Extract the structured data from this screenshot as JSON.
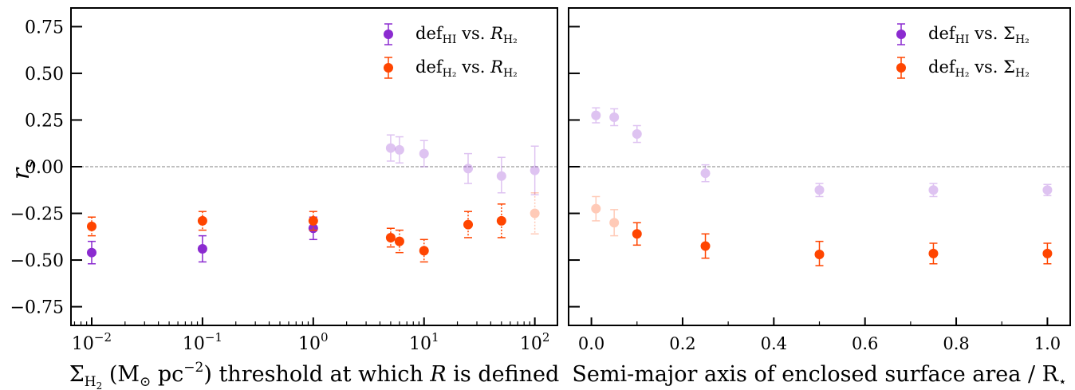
{
  "figure": {
    "ylabel": "r",
    "ylabel_sub": "s"
  },
  "chart_data": [
    {
      "type": "scatter",
      "xscale": "log",
      "xlim": [
        0.0065,
        160
      ],
      "ylim": [
        -0.85,
        0.85
      ],
      "xticks": [
        {
          "value": 0.01,
          "base": "10",
          "exp": "−2"
        },
        {
          "value": 0.1,
          "base": "10",
          "exp": "−1"
        },
        {
          "value": 1,
          "base": "10",
          "exp": "0"
        },
        {
          "value": 10,
          "base": "10",
          "exp": "1"
        },
        {
          "value": 100,
          "base": "10",
          "exp": "2"
        }
      ],
      "yticks": [
        "0.75",
        "0.50",
        "0.25",
        "0.00",
        "−0.25",
        "−0.50",
        "−0.75"
      ],
      "ytick_values": [
        0.75,
        0.5,
        0.25,
        0.0,
        -0.25,
        -0.5,
        -0.75
      ],
      "xlabel": "Σ_H₂ (M_⊙ pc^−2) threshold at which R is defined",
      "xlabel_parts": {
        "sigma": "Σ",
        "h2": "H",
        "h2sub": "2",
        "units_open": " (M",
        "sun": "⊙",
        "units_mid": " pc",
        "exp": "−2",
        "units_close": ") threshold at which ",
        "R": "R",
        "tail": " is defined"
      },
      "reference_line": 0,
      "legend": {
        "location": "top-right",
        "entries": [
          {
            "series": 0,
            "main": "def",
            "sub": "HI",
            "vs": " vs. ",
            "var": "R",
            "varsub": "H₂"
          },
          {
            "series": 1,
            "main": "def",
            "sub": "H₂",
            "vs": " vs. ",
            "var": "R",
            "varsub": "H₂"
          }
        ]
      },
      "series": [
        {
          "color": "#8B2BD0",
          "points": [
            {
              "x": 0.01,
              "y": -0.46,
              "lo": -0.52,
              "hi": -0.4,
              "faded": false
            },
            {
              "x": 0.1,
              "y": -0.44,
              "lo": -0.51,
              "hi": -0.37,
              "faded": false
            },
            {
              "x": 1,
              "y": -0.33,
              "lo": -0.39,
              "hi": -0.27,
              "faded": false
            },
            {
              "x": 5,
              "y": 0.1,
              "lo": 0.03,
              "hi": 0.17,
              "faded": true
            },
            {
              "x": 6,
              "y": 0.09,
              "lo": 0.02,
              "hi": 0.16,
              "faded": true
            },
            {
              "x": 10,
              "y": 0.07,
              "lo": 0.0,
              "hi": 0.14,
              "faded": true
            },
            {
              "x": 25,
              "y": -0.01,
              "lo": -0.09,
              "hi": 0.07,
              "faded": true
            },
            {
              "x": 50,
              "y": -0.05,
              "lo": -0.14,
              "hi": 0.05,
              "faded": true
            },
            {
              "x": 100,
              "y": -0.02,
              "lo": -0.15,
              "hi": 0.11,
              "faded": true
            }
          ]
        },
        {
          "color": "#FF4500",
          "points": [
            {
              "x": 0.01,
              "y": -0.32,
              "lo": -0.37,
              "hi": -0.27,
              "faded": false
            },
            {
              "x": 0.1,
              "y": -0.29,
              "lo": -0.34,
              "hi": -0.24,
              "faded": false
            },
            {
              "x": 1,
              "y": -0.29,
              "lo": -0.34,
              "hi": -0.24,
              "faded": false
            },
            {
              "x": 5,
              "y": -0.38,
              "lo": -0.43,
              "hi": -0.33,
              "faded": false
            },
            {
              "x": 6,
              "y": -0.4,
              "lo": -0.46,
              "hi": -0.34,
              "faded": false
            },
            {
              "x": 10,
              "y": -0.45,
              "lo": -0.51,
              "hi": -0.39,
              "faded": false
            },
            {
              "x": 25,
              "y": -0.31,
              "lo": -0.38,
              "hi": -0.24,
              "faded": false
            },
            {
              "x": 50,
              "y": -0.29,
              "lo": -0.38,
              "hi": -0.2,
              "faded": false
            },
            {
              "x": 100,
              "y": -0.25,
              "lo": -0.36,
              "hi": -0.14,
              "faded": true
            }
          ]
        }
      ]
    },
    {
      "type": "scatter",
      "xscale": "linear",
      "xlim": [
        -0.05,
        1.05
      ],
      "ylim": [
        -0.85,
        0.85
      ],
      "xticks": [
        {
          "value": 0.0,
          "label": "0.0"
        },
        {
          "value": 0.2,
          "label": "0.2"
        },
        {
          "value": 0.4,
          "label": "0.4"
        },
        {
          "value": 0.6,
          "label": "0.6"
        },
        {
          "value": 0.8,
          "label": "0.8"
        },
        {
          "value": 1.0,
          "label": "1.0"
        }
      ],
      "ytick_values": [
        0.75,
        0.5,
        0.25,
        0.0,
        -0.25,
        -0.5,
        -0.75
      ],
      "xlabel": "Semi-major axis of enclosed surface area / R⋆",
      "xlabel_parts": {
        "text": "Semi-major axis of enclosed surface area / R",
        "sub": "⋆"
      },
      "reference_line": 0,
      "legend": {
        "location": "top-right",
        "entries": [
          {
            "series": 0,
            "main": "def",
            "sub": "HI",
            "vs": " vs. ",
            "var": "Σ",
            "varsub": "H₂"
          },
          {
            "series": 1,
            "main": "def",
            "sub": "H₂",
            "vs": " vs. ",
            "var": "Σ",
            "varsub": "H₂"
          }
        ]
      },
      "series": [
        {
          "color": "#8B2BD0",
          "points": [
            {
              "x": 0.01,
              "y": 0.275,
              "lo": 0.235,
              "hi": 0.315,
              "faded": true
            },
            {
              "x": 0.05,
              "y": 0.265,
              "lo": 0.22,
              "hi": 0.31,
              "faded": true
            },
            {
              "x": 0.1,
              "y": 0.175,
              "lo": 0.13,
              "hi": 0.22,
              "faded": true
            },
            {
              "x": 0.25,
              "y": -0.035,
              "lo": -0.08,
              "hi": 0.01,
              "faded": true
            },
            {
              "x": 0.5,
              "y": -0.125,
              "lo": -0.16,
              "hi": -0.09,
              "faded": true
            },
            {
              "x": 0.75,
              "y": -0.125,
              "lo": -0.16,
              "hi": -0.09,
              "faded": true
            },
            {
              "x": 1.0,
              "y": -0.125,
              "lo": -0.155,
              "hi": -0.095,
              "faded": true
            }
          ]
        },
        {
          "color": "#FF4500",
          "points": [
            {
              "x": 0.01,
              "y": -0.225,
              "lo": -0.29,
              "hi": -0.16,
              "faded": true
            },
            {
              "x": 0.05,
              "y": -0.3,
              "lo": -0.37,
              "hi": -0.23,
              "faded": true
            },
            {
              "x": 0.1,
              "y": -0.36,
              "lo": -0.42,
              "hi": -0.3,
              "faded": false
            },
            {
              "x": 0.25,
              "y": -0.425,
              "lo": -0.49,
              "hi": -0.36,
              "faded": false
            },
            {
              "x": 0.5,
              "y": -0.47,
              "lo": -0.53,
              "hi": -0.4,
              "faded": false
            },
            {
              "x": 0.75,
              "y": -0.465,
              "lo": -0.52,
              "hi": -0.41,
              "faded": false
            },
            {
              "x": 1.0,
              "y": -0.465,
              "lo": -0.52,
              "hi": -0.41,
              "faded": false
            }
          ]
        }
      ]
    }
  ]
}
